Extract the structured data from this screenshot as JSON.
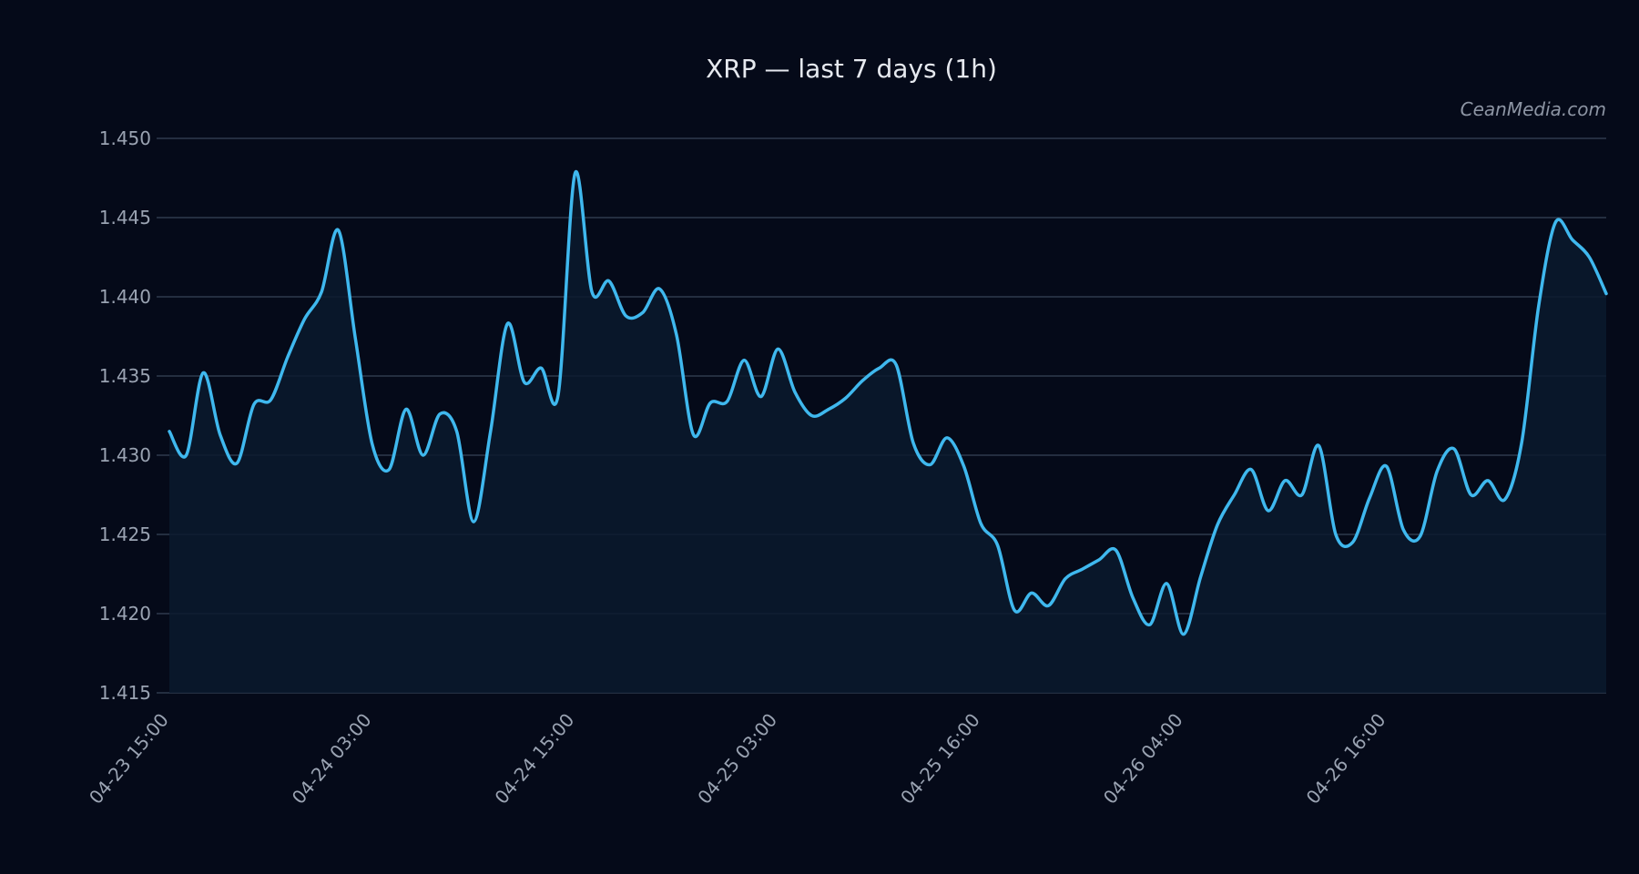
{
  "chart_data": {
    "type": "line",
    "title": "XRP — last 7 days (1h)",
    "watermark": "CeanMedia.com",
    "xlabel": "",
    "ylabel": "",
    "ylim": [
      1.415,
      1.45
    ],
    "y_ticks": [
      "1.415",
      "1.420",
      "1.425",
      "1.430",
      "1.435",
      "1.440",
      "1.445",
      "1.450"
    ],
    "x_tick_labels": [
      {
        "label": "04-23 15:00",
        "index": 0
      },
      {
        "label": "04-24 03:00",
        "index": 12
      },
      {
        "label": "04-24 15:00",
        "index": 24
      },
      {
        "label": "04-25 03:00",
        "index": 36
      },
      {
        "label": "04-25 16:00",
        "index": 48
      },
      {
        "label": "04-26 04:00",
        "index": 60
      },
      {
        "label": "04-26 16:00",
        "index": 72
      }
    ],
    "grid": true,
    "area_fill": true,
    "colors": {
      "background": "#050a19",
      "line": "#3fb8ee",
      "fill": "#0a1a2e",
      "grid": "#2f3a4d",
      "title": "#e6e9ef",
      "tick": "#9aa3b2",
      "watermark": "#8d95a4"
    },
    "series": [
      {
        "values": [
          1.4315,
          1.43,
          1.4352,
          1.4313,
          1.4295,
          1.4332,
          1.4335,
          1.4362,
          1.4386,
          1.4403,
          1.4442,
          1.4374,
          1.4307,
          1.4291,
          1.4329,
          1.43,
          1.4326,
          1.4315,
          1.4258,
          1.4315,
          1.4383,
          1.4346,
          1.4355,
          1.4338,
          1.4478,
          1.4403,
          1.441,
          1.4388,
          1.439,
          1.4405,
          1.4376,
          1.4313,
          1.4333,
          1.4334,
          1.436,
          1.4337,
          1.4367,
          1.434,
          1.4325,
          1.4329,
          1.4336,
          1.4347,
          1.4355,
          1.4357,
          1.4308,
          1.4294,
          1.4311,
          1.4293,
          1.4257,
          1.4243,
          1.4202,
          1.4213,
          1.4205,
          1.4222,
          1.4228,
          1.4234,
          1.424,
          1.421,
          1.4193,
          1.4219,
          1.4187,
          1.4223,
          1.4256,
          1.4275,
          1.4291,
          1.4265,
          1.4284,
          1.4275,
          1.4306,
          1.425,
          1.4245,
          1.4273,
          1.4293,
          1.4253,
          1.4249,
          1.429,
          1.4304,
          1.4275,
          1.4284,
          1.4272,
          1.4308,
          1.4394,
          1.4447,
          1.4436,
          1.4425,
          1.4402
        ]
      }
    ]
  }
}
